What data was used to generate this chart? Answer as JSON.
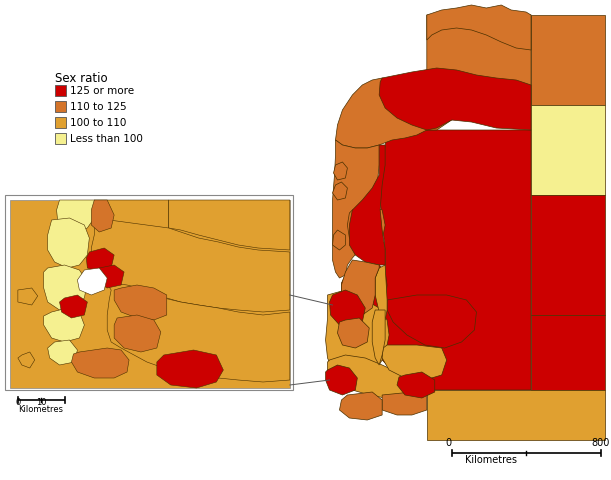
{
  "legend_title": "Sex ratio",
  "legend_items": [
    {
      "label": "125 or more",
      "color": "#CC0000"
    },
    {
      "label": "110 to 125",
      "color": "#D4742A"
    },
    {
      "label": "100 to 110",
      "color": "#E0A030"
    },
    {
      "label": "Less than 100",
      "color": "#F5F090"
    }
  ],
  "colors": {
    "dark_red": "#CC0000",
    "orange": "#D4742A",
    "light_orange": "#E0A030",
    "yellow": "#F5F090",
    "white": "#FFFFFF",
    "border": "#4A3000",
    "bg": "#FFFFFF"
  },
  "figsize": [
    6.11,
    4.8
  ],
  "dpi": 100
}
